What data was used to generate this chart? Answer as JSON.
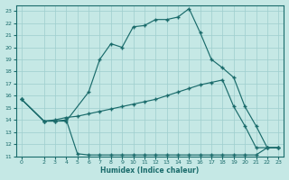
{
  "xlabel": "Humidex (Indice chaleur)",
  "background_color": "#c5e8e5",
  "grid_color": "#9ecece",
  "line_color": "#1a6b6b",
  "xlim": [
    -0.5,
    23.5
  ],
  "ylim": [
    11,
    23.5
  ],
  "xticks": [
    0,
    2,
    3,
    4,
    5,
    6,
    7,
    8,
    9,
    10,
    11,
    12,
    13,
    14,
    15,
    16,
    17,
    18,
    19,
    20,
    21,
    22,
    23
  ],
  "yticks": [
    11,
    12,
    13,
    14,
    15,
    16,
    17,
    18,
    19,
    20,
    21,
    22,
    23
  ],
  "line1_x": [
    0,
    2,
    3,
    4,
    6,
    7,
    8,
    9,
    10,
    11,
    12,
    13,
    14,
    15,
    16,
    17,
    18,
    19,
    20,
    21,
    22,
    23
  ],
  "line1_y": [
    15.7,
    13.9,
    13.9,
    13.9,
    16.3,
    19.0,
    20.3,
    20.0,
    21.7,
    21.8,
    22.3,
    22.3,
    22.5,
    23.2,
    21.2,
    19.0,
    18.3,
    17.5,
    15.1,
    13.5,
    11.7,
    11.7
  ],
  "line2_x": [
    0,
    2,
    3,
    4,
    5,
    6,
    7,
    8,
    9,
    10,
    11,
    12,
    13,
    14,
    15,
    16,
    17,
    18,
    19,
    20,
    21,
    22,
    23
  ],
  "line2_y": [
    15.7,
    13.9,
    13.9,
    14.0,
    11.2,
    11.1,
    11.1,
    11.1,
    11.1,
    11.1,
    11.1,
    11.1,
    11.1,
    11.1,
    11.1,
    11.1,
    11.1,
    11.1,
    11.1,
    11.1,
    11.1,
    11.7,
    11.7
  ],
  "line3_x": [
    0,
    2,
    3,
    4,
    5,
    6,
    7,
    8,
    9,
    10,
    11,
    12,
    13,
    14,
    15,
    16,
    17,
    18,
    19,
    20,
    21,
    22,
    23
  ],
  "line3_y": [
    15.7,
    13.9,
    14.0,
    14.2,
    14.3,
    14.5,
    14.7,
    14.9,
    15.1,
    15.3,
    15.5,
    15.7,
    16.0,
    16.3,
    16.6,
    16.9,
    17.1,
    17.3,
    15.1,
    13.5,
    11.7,
    11.7,
    11.7
  ]
}
